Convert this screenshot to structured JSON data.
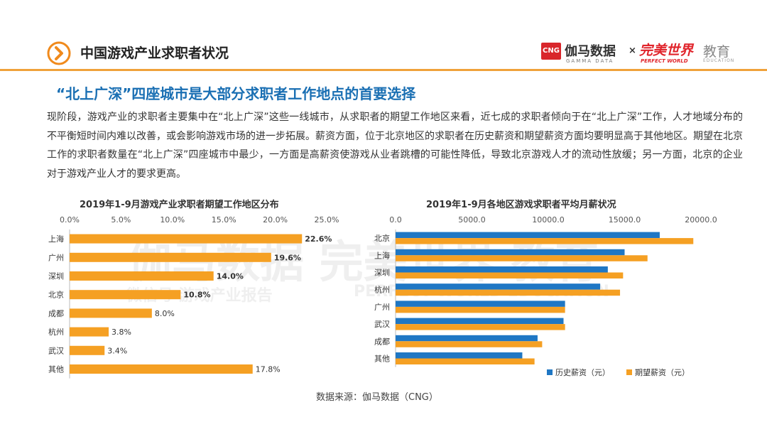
{
  "header": {
    "title": "中国游戏产业求职者状况",
    "logo_cng": "CNG",
    "logo_gamma": "伽马数据",
    "logo_gamma_sub": "GAMMA DATA",
    "logo_times": "×",
    "logo_pw": "完美世界",
    "logo_pw_sub": "PERFECT WORLD",
    "logo_edu": "教育",
    "logo_edu_sub": "EDUCATION"
  },
  "subtitle": "“北上广深”四座城市是大部分求职者工作地点的首要选择",
  "paragraph": "现阶段，游戏产业的求职者主要集中在“北上广深”这些一线城市，从求职者的期望工作地区来看，近七成的求职者倾向于在“北上广深”工作，人才地域分布的不平衡短时间内难以改善，或会影响游戏市场的进一步拓展。薪资方面，位于北京地区的求职者在历史薪资和期望薪资方面均要明显高于其他地区。期望在北京工作的求职者数量在“北上广深”四座城市中最少，一方面是高薪资使游戏从业者跳槽的可能性降低，导致北京游戏人才的流动性放缓；另一方面，北京的企业对于游戏产业人才的要求更高。",
  "watermark": {
    "line1": "伽马数据  完美世界  教育",
    "line2": "微信号  游戏产业报告",
    "line3": "PERFECT WORLD  EDUCATION"
  },
  "source": "数据来源：伽马数据（CNG）",
  "chart_data": [
    {
      "type": "bar",
      "orientation": "horizontal",
      "title": "2019年1-9月游戏产业求职者期望工作地区分布",
      "categories": [
        "上海",
        "广州",
        "深圳",
        "北京",
        "成都",
        "杭州",
        "武汉",
        "其他"
      ],
      "values": [
        22.6,
        19.6,
        14.0,
        10.8,
        8.0,
        3.8,
        3.4,
        17.8
      ],
      "value_labels": [
        "22.6%",
        "19.6%",
        "14.0%",
        "10.8%",
        "8.0%",
        "3.8%",
        "3.4%",
        "17.8%"
      ],
      "xlim": [
        0,
        25
      ],
      "ticks": [
        "0.0%",
        "5.0%",
        "10.0%",
        "15.0%",
        "20.0%",
        "25.0%"
      ],
      "axis_position": "top",
      "color": "#f5a023"
    },
    {
      "type": "bar",
      "orientation": "horizontal",
      "title": "2019年1-9月各地区游戏求职者平均月薪状况",
      "categories": [
        "北京",
        "上海",
        "深圳",
        "杭州",
        "广州",
        "武汉",
        "成都",
        "其他"
      ],
      "series": [
        {
          "name": "历史薪资（元）",
          "color": "#1f77c4",
          "values": [
            17300,
            15000,
            13900,
            13400,
            11100,
            11000,
            9300,
            8300
          ]
        },
        {
          "name": "期望薪资（元）",
          "color": "#f5a023",
          "values": [
            19500,
            16500,
            14900,
            14700,
            11100,
            11100,
            9600,
            9100
          ]
        }
      ],
      "xlim": [
        0,
        20000
      ],
      "ticks": [
        "0.0",
        "5000.0",
        "10000.0",
        "15000.0",
        "20000.0"
      ],
      "axis_position": "top",
      "legend": "bottom-right"
    }
  ]
}
